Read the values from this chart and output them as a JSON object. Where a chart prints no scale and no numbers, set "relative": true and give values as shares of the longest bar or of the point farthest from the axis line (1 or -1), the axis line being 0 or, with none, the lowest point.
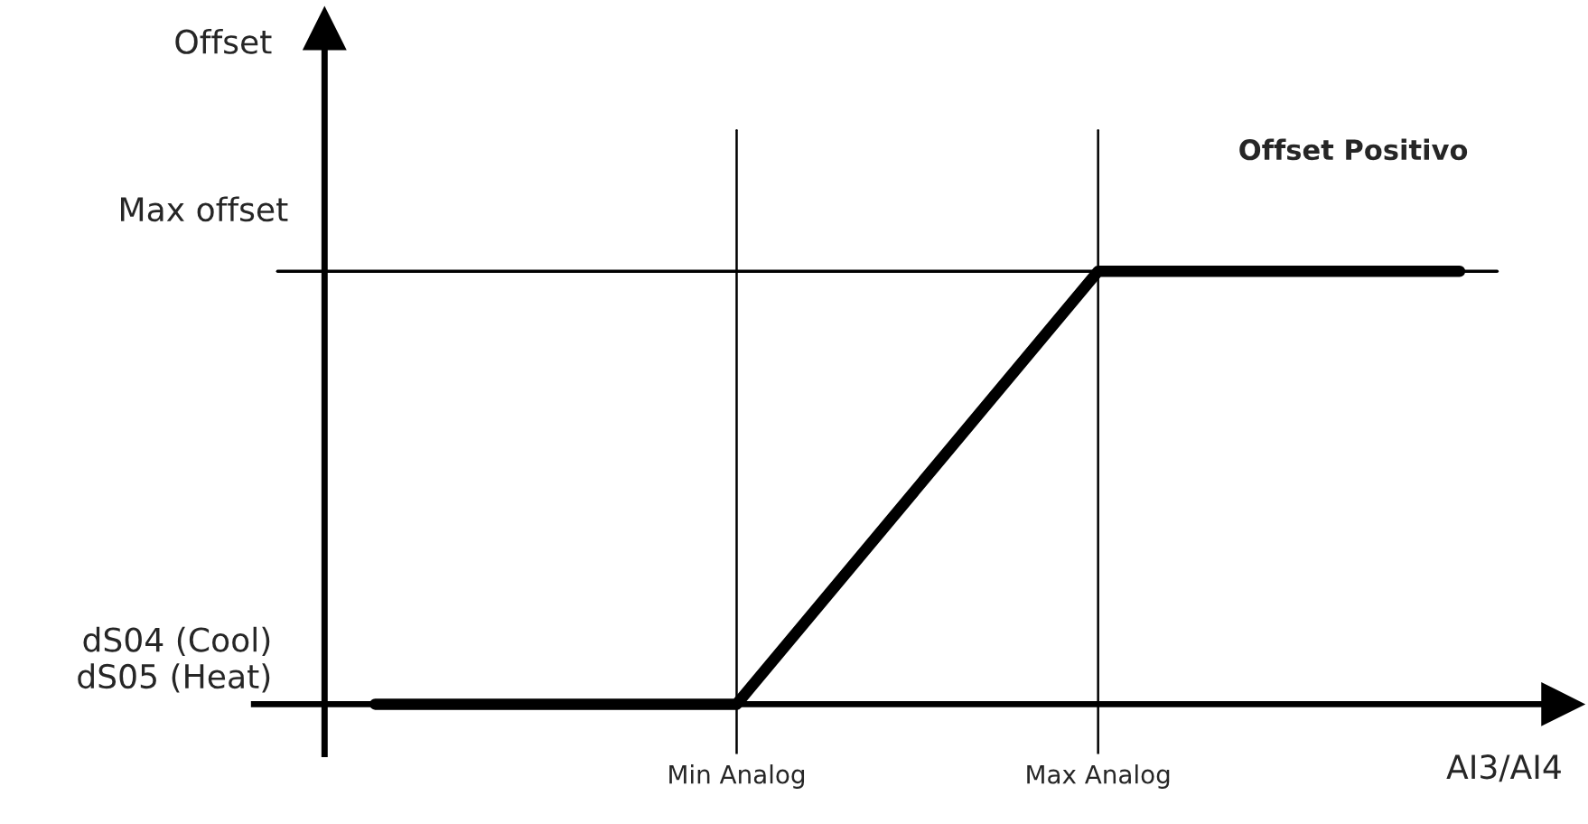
{
  "chart_data": {
    "type": "line",
    "relative": true,
    "xlabel": "AI3/AI4",
    "annotations": [
      "Offset",
      "Offset Positivo",
      "dS04 (Cool)\ndS05 (Heat)"
    ],
    "categories": [
      null,
      "Min Analog",
      "Max Analog",
      null
    ],
    "series": [
      {
        "color": "#000000",
        "values": [
          0,
          0,
          1,
          1
        ]
      }
    ],
    "ref_lines": [
      {
        "axis": "x",
        "value": "Min Analog",
        "color": "#000000"
      },
      {
        "axis": "x",
        "value": "Max Analog",
        "color": "#000000"
      },
      {
        "axis": "y",
        "value": 1,
        "label": "Max offset",
        "color": "#000000"
      }
    ],
    "line_style": "solid",
    "grid": false,
    "legend": false
  }
}
